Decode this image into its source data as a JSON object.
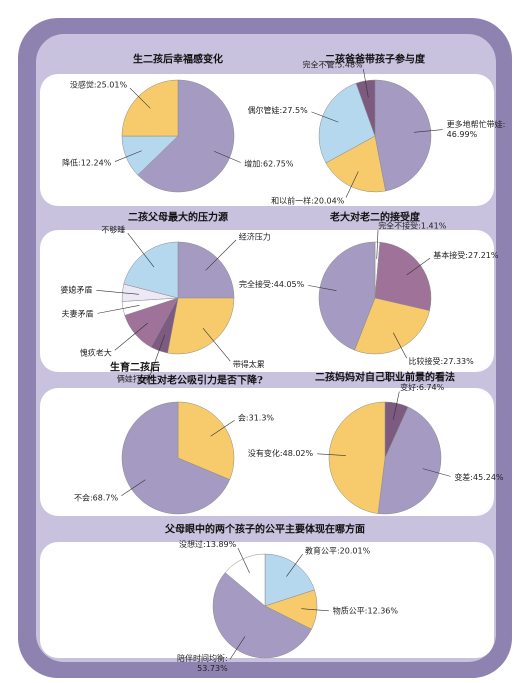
{
  "chart_data": [
    {
      "type": "pie",
      "title": "生二孩后幸福感变化",
      "values": [
        62.75,
        12.24,
        25.01
      ],
      "value_labels": [
        "增加:62.75%",
        "降低:12.24%",
        "没感觉:25.01%"
      ],
      "colors": [
        "#a59bc2",
        "#b5d8ef",
        "#f7cb6b"
      ]
    },
    {
      "type": "pie",
      "title": "二孩爸爸带孩子参与度",
      "values": [
        46.99,
        20.04,
        27.5,
        5.48
      ],
      "value_labels": [
        "更多地帮忙带娃:46.99%",
        "和以前一样:20.04%",
        "偶尔管娃:27.5%",
        "完全不管:5.48%"
      ],
      "colors": [
        "#a59bc2",
        "#f7cb6b",
        "#b5d8ef",
        "#7d5a80"
      ]
    },
    {
      "type": "pie",
      "title": "二孩父母最大的压力源",
      "values": [
        25,
        28,
        5,
        12,
        4,
        5,
        21
      ],
      "categories": [
        "经济压力",
        "带得太累",
        "俩娃打闹",
        "愧疚老大",
        "夫妻矛盾",
        "婆媳矛盾",
        "不够睡"
      ],
      "colors": [
        "#a59bc2",
        "#f7cb6b",
        "#7d5a80",
        "#9f7399",
        "#ffffff",
        "#ece8f4",
        "#b5d8ef"
      ]
    },
    {
      "type": "pie",
      "title": "老大对老二的接受度",
      "values": [
        1.41,
        27.21,
        27.33,
        44.05
      ],
      "value_labels": [
        "完全不接受:1.41%",
        "基本接受:27.21%",
        "比较接受:27.33%",
        "完全接受:44.05%"
      ],
      "colors": [
        "#ffffff",
        "#9f7399",
        "#f7cb6b",
        "#a59bc2"
      ]
    },
    {
      "type": "pie",
      "title": [
        "生育二孩后",
        "女性对老公吸引力是否下降?"
      ],
      "values": [
        31.3,
        68.7
      ],
      "value_labels": [
        "会:31.3%",
        "不会:68.7%"
      ],
      "colors": [
        "#f7cb6b",
        "#a59bc2"
      ]
    },
    {
      "type": "pie",
      "title": "二孩妈妈对自己职业前景的看法",
      "values": [
        6.74,
        45.24,
        48.02
      ],
      "value_labels": [
        "变好:6.74%",
        "变差:45.24%",
        "没有变化:48.02%"
      ],
      "colors": [
        "#7d5a80",
        "#a59bc2",
        "#f7cb6b"
      ]
    },
    {
      "type": "pie",
      "title": "父母眼中的两个孩子的公平主要体现在哪方面",
      "values": [
        20.01,
        12.36,
        53.73,
        13.89
      ],
      "value_labels": [
        "教育公平:20.01%",
        "物质公平:12.36%",
        "陪伴时间均衡:53.73%",
        "没想过:13.89%"
      ],
      "colors": [
        "#b5d8ef",
        "#f7cb6b",
        "#a59bc2",
        "#ffffff"
      ]
    }
  ]
}
